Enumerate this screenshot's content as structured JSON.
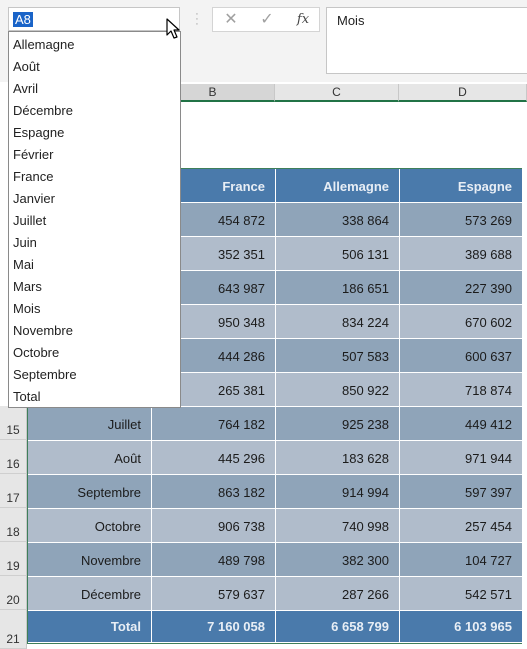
{
  "name_box": {
    "value": "A8"
  },
  "formula_bar": {
    "cancel_symbol": "✕",
    "enter_symbol": "✓",
    "fx_label": "fx",
    "content": "Mois"
  },
  "columns": [
    "B",
    "C",
    "D"
  ],
  "rows": [
    {
      "num": "15",
      "label": "Juillet",
      "france": "764 182",
      "allemagne": "925 238",
      "espagne": "449 412"
    },
    {
      "num": "16",
      "label": "Août",
      "france": "445 296",
      "allemagne": "183 628",
      "espagne": "971 944"
    },
    {
      "num": "17",
      "label": "Septembre",
      "france": "863 182",
      "allemagne": "914 994",
      "espagne": "597 397"
    },
    {
      "num": "18",
      "label": "Octobre",
      "france": "906 738",
      "allemagne": "740 998",
      "espagne": "257 454"
    },
    {
      "num": "19",
      "label": "Novembre",
      "france": "489 798",
      "allemagne": "382 300",
      "espagne": "104 727"
    },
    {
      "num": "20",
      "label": "Décembre",
      "france": "579 637",
      "allemagne": "287 266",
      "espagne": "542 571"
    },
    {
      "num": "21",
      "label": "Total",
      "france": "7 160 058",
      "allemagne": "6 658 799",
      "espagne": "6 103 965"
    }
  ],
  "table": {
    "headers": [
      "",
      "France",
      "Allemagne",
      "Espagne"
    ],
    "hidden_rows": [
      {
        "france": "454 872",
        "allemagne": "338 864",
        "espagne": "573 269"
      },
      {
        "france": "352 351",
        "allemagne": "506 131",
        "espagne": "389 688"
      },
      {
        "france": "643 987",
        "allemagne": "186 651",
        "espagne": "227 390"
      },
      {
        "france": "950 348",
        "allemagne": "834 224",
        "espagne": "670 602"
      },
      {
        "france": "444 286",
        "allemagne": "507 583",
        "espagne": "600 637"
      },
      {
        "france": "265 381",
        "allemagne": "850 922",
        "espagne": "718 874"
      }
    ]
  },
  "dropdown": {
    "items": [
      "Allemagne",
      "Août",
      "Avril",
      "Décembre",
      "Espagne",
      "Février",
      "France",
      "Janvier",
      "Juillet",
      "Juin",
      "Mai",
      "Mars",
      "Mois",
      "Novembre",
      "Octobre",
      "Septembre",
      "Total"
    ]
  },
  "colors": {
    "header_blue": "#4a7aab",
    "band_dark": "#8fa4b9",
    "band_light": "#b0bccb",
    "excel_green": "#217346",
    "selection_blue": "#1a64c8"
  }
}
